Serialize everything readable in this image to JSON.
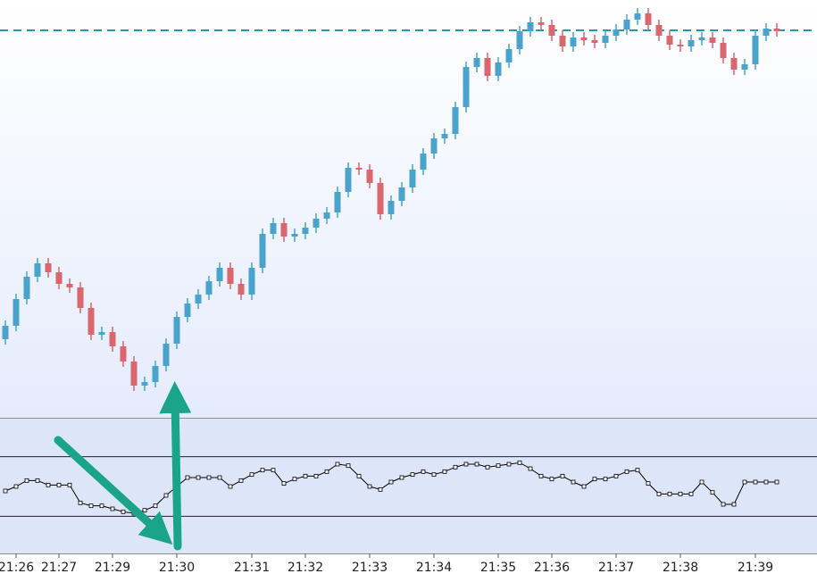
{
  "chart_data": [
    {
      "type": "candlestick",
      "color_up": "#4aa3cc",
      "color_down": "#d9676d",
      "ylim": [
        0,
        470
      ],
      "hline": {
        "value": 436,
        "color": "#1f9bb0"
      },
      "values": [
        [
          90,
          111,
          84,
          105
        ],
        [
          105,
          141,
          99,
          135
        ],
        [
          135,
          166,
          129,
          160
        ],
        [
          160,
          181,
          154,
          175
        ],
        [
          175,
          181,
          159,
          165
        ],
        [
          165,
          171,
          146,
          152
        ],
        [
          152,
          158,
          142,
          148
        ],
        [
          148,
          154,
          119,
          125
        ],
        [
          125,
          131,
          89,
          95
        ],
        [
          95,
          104,
          89,
          98
        ],
        [
          98,
          104,
          76,
          82
        ],
        [
          82,
          88,
          59,
          65
        ],
        [
          65,
          71,
          32,
          38
        ],
        [
          38,
          48,
          32,
          42
        ],
        [
          42,
          66,
          36,
          60
        ],
        [
          60,
          91,
          54,
          85
        ],
        [
          85,
          121,
          79,
          115
        ],
        [
          115,
          136,
          109,
          130
        ],
        [
          130,
          146,
          124,
          140
        ],
        [
          140,
          161,
          134,
          155
        ],
        [
          155,
          176,
          149,
          170
        ],
        [
          170,
          176,
          146,
          152
        ],
        [
          152,
          158,
          134,
          140
        ],
        [
          140,
          176,
          134,
          170
        ],
        [
          170,
          214,
          164,
          208
        ],
        [
          208,
          226,
          202,
          220
        ],
        [
          220,
          226,
          199,
          205
        ],
        [
          205,
          214,
          199,
          208
        ],
        [
          208,
          221,
          202,
          215
        ],
        [
          215,
          231,
          209,
          225
        ],
        [
          225,
          238,
          219,
          232
        ],
        [
          232,
          261,
          226,
          255
        ],
        [
          255,
          288,
          249,
          282
        ],
        [
          282,
          288,
          274,
          280
        ],
        [
          280,
          286,
          259,
          265
        ],
        [
          265,
          271,
          224,
          230
        ],
        [
          230,
          251,
          224,
          245
        ],
        [
          245,
          266,
          239,
          260
        ],
        [
          260,
          286,
          254,
          280
        ],
        [
          280,
          304,
          274,
          298
        ],
        [
          298,
          321,
          292,
          315
        ],
        [
          315,
          326,
          309,
          320
        ],
        [
          320,
          356,
          314,
          350
        ],
        [
          350,
          401,
          344,
          395
        ],
        [
          395,
          411,
          389,
          405
        ],
        [
          405,
          411,
          379,
          385
        ],
        [
          385,
          406,
          379,
          400
        ],
        [
          400,
          421,
          394,
          415
        ],
        [
          415,
          441,
          409,
          435
        ],
        [
          435,
          451,
          429,
          445
        ],
        [
          445,
          451,
          436,
          442
        ],
        [
          442,
          448,
          424,
          430
        ],
        [
          430,
          436,
          412,
          418
        ],
        [
          418,
          434,
          412,
          428
        ],
        [
          428,
          434,
          419,
          425
        ],
        [
          425,
          431,
          416,
          422
        ],
        [
          422,
          436,
          416,
          430
        ],
        [
          430,
          443,
          424,
          437
        ],
        [
          437,
          454,
          431,
          448
        ],
        [
          448,
          461,
          442,
          455
        ],
        [
          455,
          461,
          436,
          442
        ],
        [
          442,
          448,
          424,
          430
        ],
        [
          430,
          436,
          414,
          420
        ],
        [
          420,
          426,
          412,
          418
        ],
        [
          418,
          431,
          412,
          425
        ],
        [
          425,
          434,
          419,
          428
        ],
        [
          428,
          434,
          416,
          422
        ],
        [
          422,
          428,
          399,
          405
        ],
        [
          405,
          411,
          386,
          392
        ],
        [
          392,
          404,
          386,
          398
        ],
        [
          398,
          436,
          392,
          430
        ],
        [
          430,
          444,
          424,
          438
        ],
        [
          438,
          444,
          429,
          435
        ]
      ]
    },
    {
      "type": "line",
      "color": "#000000",
      "ylim": [
        5,
        95
      ],
      "levels": [
        70,
        30
      ],
      "values": [
        47,
        50,
        54,
        54,
        51,
        51,
        51,
        39,
        37,
        37,
        35,
        33,
        32,
        34,
        37,
        44,
        50,
        56,
        56,
        56,
        56,
        50,
        54,
        58,
        61,
        61,
        52,
        55,
        57,
        57,
        60,
        65,
        64,
        57,
        50,
        48,
        53,
        56,
        58,
        60,
        58,
        60,
        63,
        65,
        65,
        63,
        64,
        65,
        66,
        62,
        57,
        55,
        57,
        53,
        50,
        55,
        55,
        57,
        60,
        61,
        52,
        45,
        45,
        45,
        45,
        53,
        46,
        38,
        38,
        53,
        53,
        53,
        53
      ],
      "xticks": [
        {
          "value": 1,
          "label": "21:26"
        },
        {
          "value": 5,
          "label": "21:27"
        },
        {
          "value": 10,
          "label": "21:29"
        },
        {
          "value": 16,
          "label": "21:30"
        },
        {
          "value": 23,
          "label": "21:31"
        },
        {
          "value": 28,
          "label": "21:32"
        },
        {
          "value": 34,
          "label": "21:33"
        },
        {
          "value": 40,
          "label": "21:34"
        },
        {
          "value": 46,
          "label": "21:35"
        },
        {
          "value": 51,
          "label": "21:36"
        },
        {
          "value": 57,
          "label": "21:37"
        },
        {
          "value": 63,
          "label": "21:38"
        },
        {
          "value": 70,
          "label": "21:39"
        }
      ]
    }
  ]
}
